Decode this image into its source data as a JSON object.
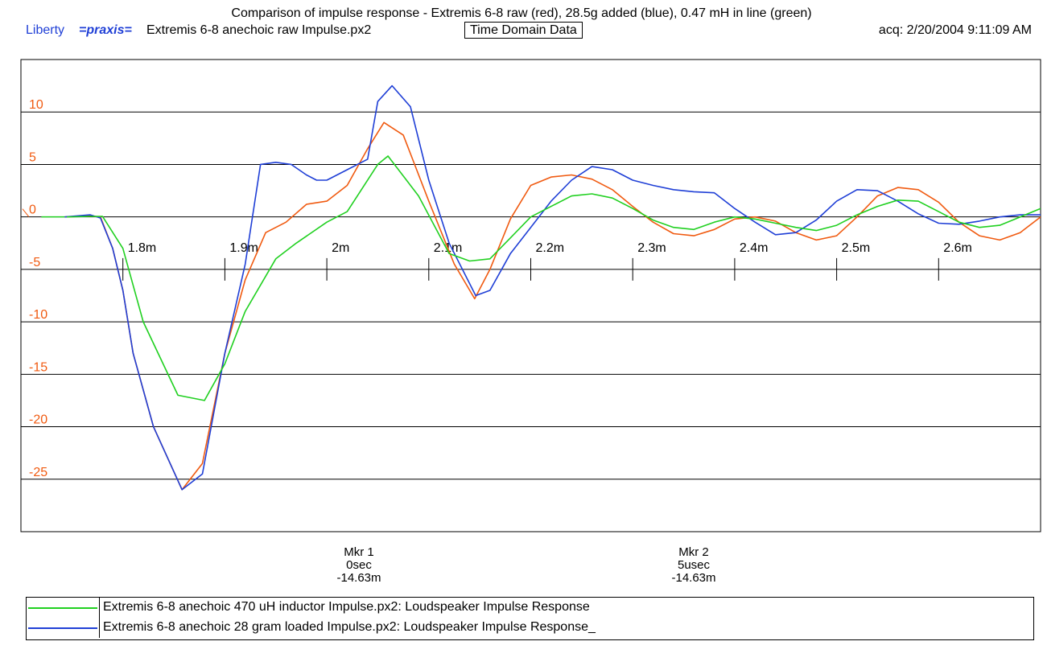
{
  "chart_data": {
    "type": "line",
    "title": "Comparison of impulse response - Extremis 6-8 raw (red), 28.5g added (blue), 0.47 mH in line (green)",
    "header": {
      "brand": "Liberty",
      "software": "=praxis=",
      "filename": "Extremis 6-8 anechoic raw Impulse.px2",
      "mode": "Time Domain Data",
      "acq": "acq: 2/20/2004 9:11:09 AM"
    },
    "y_axis": {
      "range": [
        -30,
        15
      ],
      "ticks": [
        10,
        5,
        0,
        -5,
        -10,
        -15,
        -20,
        -25
      ],
      "tick_labels": [
        "10",
        "5",
        "0",
        "-5",
        "-10",
        "-15",
        "-20",
        "-25"
      ],
      "color": "#f05a10"
    },
    "x_axis": {
      "range": [
        1.7,
        2.7
      ],
      "ticks": [
        1.8,
        1.9,
        2.0,
        2.1,
        2.2,
        2.3,
        2.4,
        2.5,
        2.6
      ],
      "tick_labels": [
        "1.8m",
        "1.9m",
        "2m",
        "2.1m",
        "2.2m",
        "2.3m",
        "2.4m",
        "2.5m",
        "2.6m"
      ],
      "axis_y_value": -5
    },
    "grid": true,
    "series": [
      {
        "key": "red",
        "color": "#f05a10",
        "x": [
          1.743,
          1.768,
          1.778,
          1.79,
          1.8,
          1.81,
          1.83,
          1.858,
          1.878,
          1.9,
          1.92,
          1.94,
          1.96,
          1.98,
          2.0,
          2.02,
          2.04,
          2.056,
          2.075,
          2.1,
          2.125,
          2.145,
          2.16,
          2.18,
          2.2,
          2.22,
          2.24,
          2.26,
          2.28,
          2.3,
          2.32,
          2.34,
          2.36,
          2.38,
          2.4,
          2.42,
          2.44,
          2.46,
          2.48,
          2.5,
          2.52,
          2.54,
          2.56,
          2.58,
          2.6,
          2.62,
          2.64,
          2.66,
          2.68,
          2.7
        ],
        "y": [
          0.0,
          0.1,
          0.0,
          -3.0,
          -7.0,
          -13.0,
          -20.0,
          -26.0,
          -23.5,
          -13.0,
          -6.0,
          -1.5,
          -0.5,
          1.2,
          1.5,
          3.0,
          6.5,
          9.0,
          7.8,
          1.5,
          -4.5,
          -7.8,
          -5.0,
          -0.2,
          3.0,
          3.8,
          4.0,
          3.6,
          2.6,
          1.0,
          -0.5,
          -1.6,
          -1.8,
          -1.2,
          -0.2,
          0.0,
          -0.4,
          -1.5,
          -2.2,
          -1.8,
          0.0,
          2.0,
          2.8,
          2.6,
          1.4,
          -0.5,
          -1.8,
          -2.2,
          -1.5,
          0.0
        ]
      },
      {
        "key": "blue",
        "color": "#1f3fd6",
        "x": [
          1.743,
          1.768,
          1.778,
          1.79,
          1.8,
          1.81,
          1.83,
          1.858,
          1.878,
          1.9,
          1.92,
          1.935,
          1.95,
          1.965,
          1.98,
          1.99,
          2.0,
          2.02,
          2.04,
          2.05,
          2.064,
          2.082,
          2.1,
          2.12,
          2.146,
          2.16,
          2.18,
          2.2,
          2.22,
          2.24,
          2.26,
          2.28,
          2.3,
          2.32,
          2.34,
          2.36,
          2.38,
          2.4,
          2.42,
          2.44,
          2.46,
          2.48,
          2.5,
          2.52,
          2.54,
          2.56,
          2.58,
          2.6,
          2.62,
          2.64,
          2.66,
          2.68,
          2.7
        ],
        "y": [
          0.0,
          0.2,
          -0.1,
          -3.0,
          -7.0,
          -13.0,
          -20.0,
          -26.0,
          -24.5,
          -13.0,
          -4.5,
          5.0,
          5.2,
          5.0,
          4.0,
          3.5,
          3.5,
          4.5,
          5.5,
          11.0,
          12.5,
          10.5,
          3.5,
          -2.5,
          -7.5,
          -7.0,
          -3.5,
          -1.0,
          1.5,
          3.5,
          4.8,
          4.5,
          3.5,
          3.0,
          2.6,
          2.4,
          2.3,
          0.8,
          -0.5,
          -1.7,
          -1.5,
          -0.3,
          1.5,
          2.6,
          2.5,
          1.5,
          0.3,
          -0.6,
          -0.7,
          -0.4,
          0.0,
          0.2,
          0.2
        ]
      },
      {
        "key": "green",
        "color": "#20d020",
        "x": [
          1.745,
          1.768,
          1.78,
          1.8,
          1.82,
          1.854,
          1.88,
          1.9,
          1.92,
          1.95,
          1.97,
          2.0,
          2.02,
          2.05,
          2.06,
          2.09,
          2.12,
          2.14,
          2.16,
          2.18,
          2.2,
          2.22,
          2.24,
          2.26,
          2.28,
          2.3,
          2.32,
          2.34,
          2.36,
          2.38,
          2.4,
          2.42,
          2.44,
          2.46,
          2.48,
          2.5,
          2.52,
          2.54,
          2.56,
          2.58,
          2.6,
          2.62,
          2.64,
          2.66,
          2.68,
          2.7
        ],
        "y": [
          0.0,
          0.05,
          0.05,
          -3.0,
          -10.0,
          -17.0,
          -17.5,
          -14.0,
          -9.0,
          -4.0,
          -2.5,
          -0.5,
          0.5,
          5.0,
          5.8,
          2.0,
          -3.5,
          -4.2,
          -4.0,
          -2.0,
          0.0,
          1.0,
          2.0,
          2.2,
          1.8,
          0.8,
          -0.3,
          -1.0,
          -1.2,
          -0.5,
          0.0,
          -0.2,
          -0.6,
          -1.0,
          -1.3,
          -0.8,
          0.2,
          1.0,
          1.6,
          1.5,
          0.5,
          -0.5,
          -1.0,
          -0.8,
          0.0,
          0.8
        ]
      }
    ]
  },
  "markers": [
    {
      "name": "Mkr 1",
      "time": "0sec",
      "value": "-14.63m"
    },
    {
      "name": "Mkr 2",
      "time": "5usec",
      "value": "-14.63m"
    }
  ],
  "legend": [
    {
      "color": "#20d020",
      "label": "Extremis 6-8 anechoic 470 uH inductor Impulse.px2:  Loudspeaker Impulse Response"
    },
    {
      "color": "#1f3fd6",
      "label": "Extremis 6-8 anechoic 28 gram loaded Impulse.px2:  Loudspeaker Impulse Response_"
    }
  ]
}
